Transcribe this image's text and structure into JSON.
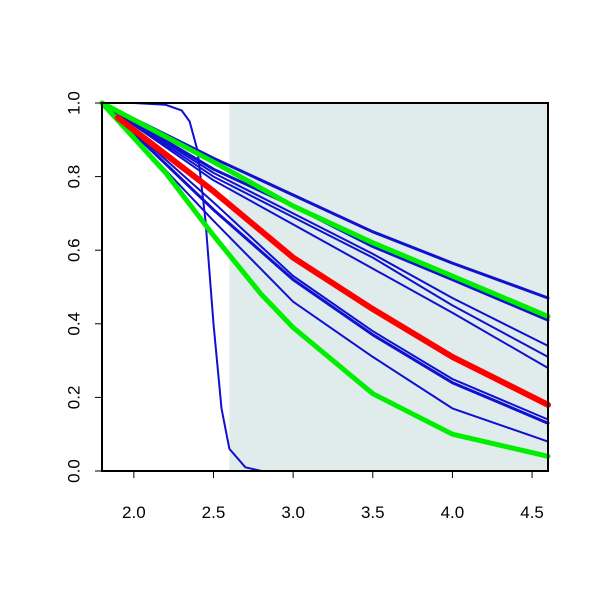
{
  "chart_data": {
    "type": "line",
    "title": "",
    "xlabel": "",
    "ylabel": "",
    "xlim": [
      1.8,
      4.6
    ],
    "ylim": [
      0.0,
      1.0
    ],
    "x_ticks": [
      2.0,
      2.5,
      3.0,
      3.5,
      4.0,
      4.5
    ],
    "x_tick_labels": [
      "2.0",
      "2.5",
      "3.0",
      "3.5",
      "4.0",
      "4.5"
    ],
    "y_ticks": [
      0.0,
      0.2,
      0.4,
      0.6,
      0.8,
      1.0
    ],
    "y_tick_labels": [
      "0.0",
      "0.2",
      "0.4",
      "0.6",
      "0.8",
      "1.0"
    ],
    "grid": false,
    "legend": "none",
    "shaded_region": {
      "x_from": 2.6,
      "x_to": 4.6,
      "color": "#dfeceb"
    },
    "series": [
      {
        "color": "#1010d0",
        "width": 2,
        "x": [
          1.8,
          2.0,
          2.2,
          2.3,
          2.35,
          2.4,
          2.45,
          2.5,
          2.55,
          2.6,
          2.7,
          2.8,
          4.6
        ],
        "y": [
          1.0,
          1.0,
          0.995,
          0.98,
          0.95,
          0.87,
          0.68,
          0.4,
          0.17,
          0.06,
          0.01,
          0.0,
          0.0
        ]
      },
      {
        "color": "#1010d0",
        "width": 3,
        "x": [
          1.8,
          2.5,
          3.0,
          3.5,
          4.0,
          4.6
        ],
        "y": [
          1.0,
          0.85,
          0.75,
          0.65,
          0.565,
          0.47
        ]
      },
      {
        "color": "#1010d0",
        "width": 3,
        "x": [
          1.8,
          2.5,
          3.0,
          3.5,
          4.0,
          4.6
        ],
        "y": [
          1.0,
          0.82,
          0.72,
          0.61,
          0.52,
          0.41
        ]
      },
      {
        "color": "#1010d0",
        "width": 2,
        "x": [
          1.8,
          2.5,
          3.0,
          3.5,
          4.0,
          4.6
        ],
        "y": [
          1.0,
          0.81,
          0.7,
          0.59,
          0.47,
          0.34
        ]
      },
      {
        "color": "#1010d0",
        "width": 2,
        "x": [
          1.8,
          2.5,
          3.0,
          3.5,
          4.0,
          4.6
        ],
        "y": [
          1.0,
          0.8,
          0.69,
          0.58,
          0.45,
          0.31
        ]
      },
      {
        "color": "#1010d0",
        "width": 2,
        "x": [
          1.8,
          2.5,
          3.0,
          3.5,
          4.0,
          4.6
        ],
        "y": [
          1.0,
          0.79,
          0.67,
          0.55,
          0.43,
          0.28
        ]
      },
      {
        "color": "#1010d0",
        "width": 2,
        "x": [
          1.8,
          2.5,
          3.0,
          3.5,
          4.0,
          4.6
        ],
        "y": [
          1.0,
          0.73,
          0.53,
          0.38,
          0.25,
          0.14
        ]
      },
      {
        "color": "#1010d0",
        "width": 3,
        "x": [
          1.8,
          2.5,
          3.0,
          3.5,
          4.0,
          4.6
        ],
        "y": [
          1.0,
          0.71,
          0.52,
          0.37,
          0.24,
          0.13
        ]
      },
      {
        "color": "#1010d0",
        "width": 2,
        "x": [
          1.8,
          2.5,
          3.0,
          3.5,
          4.0,
          4.6
        ],
        "y": [
          1.0,
          0.68,
          0.46,
          0.31,
          0.17,
          0.08
        ]
      },
      {
        "color": "#00ee00",
        "width": 5,
        "x": [
          1.8,
          2.5,
          3.0,
          3.5,
          4.0,
          4.6
        ],
        "y": [
          1.0,
          0.84,
          0.72,
          0.62,
          0.53,
          0.42
        ]
      },
      {
        "color": "#00ee00",
        "width": 5,
        "x": [
          1.8,
          2.2,
          2.5,
          2.8,
          3.0,
          3.5,
          4.0,
          4.6
        ],
        "y": [
          1.0,
          0.81,
          0.64,
          0.48,
          0.39,
          0.21,
          0.1,
          0.04
        ]
      },
      {
        "color": "#ff0000",
        "width": 6,
        "x": [
          1.9,
          2.5,
          3.0,
          3.5,
          4.0,
          4.6
        ],
        "y": [
          0.96,
          0.76,
          0.58,
          0.44,
          0.31,
          0.18
        ]
      }
    ]
  }
}
